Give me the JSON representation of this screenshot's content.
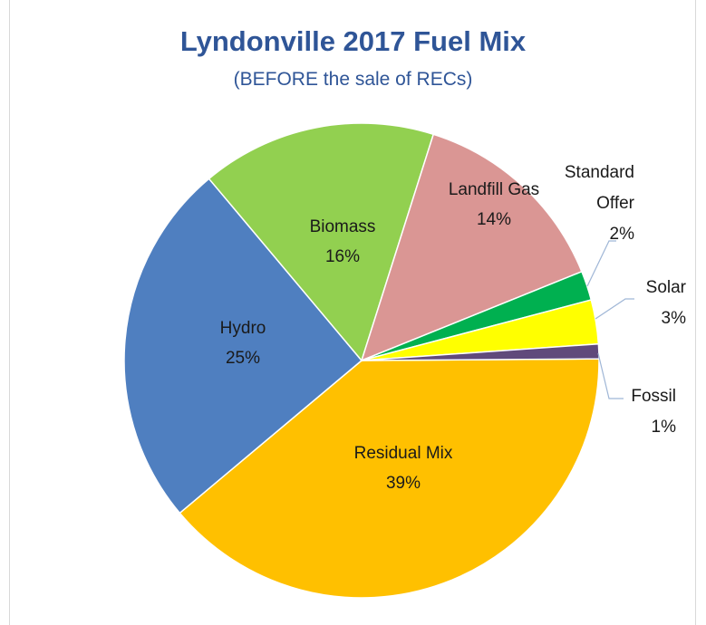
{
  "chart_data": {
    "type": "pie",
    "title": "Lyndonville 2017 Fuel Mix",
    "subtitle": "(BEFORE the sale of RECs)",
    "slices": [
      {
        "name": "Residual Mix",
        "label": "Residual Mix",
        "pct_label": "39%",
        "value": 39,
        "color": "#ffc000"
      },
      {
        "name": "Hydro",
        "label": "Hydro",
        "pct_label": "25%",
        "value": 25,
        "color": "#4f7fc0"
      },
      {
        "name": "Biomass",
        "label": "Biomass",
        "pct_label": "16%",
        "value": 16,
        "color": "#92d050"
      },
      {
        "name": "Landfill Gas",
        "label": "Landfill Gas",
        "pct_label": "14%",
        "value": 14,
        "color": "#da9694"
      },
      {
        "name": "Standard Offer",
        "label": "Standard Offer",
        "pct_label": "2%",
        "value": 2,
        "color": "#00b050"
      },
      {
        "name": "Solar",
        "label": "Solar",
        "pct_label": "3%",
        "value": 3,
        "color": "#ffff00"
      },
      {
        "name": "Fossil",
        "label": "Fossil",
        "pct_label": "1%",
        "value": 1,
        "color": "#604a7b"
      }
    ]
  }
}
